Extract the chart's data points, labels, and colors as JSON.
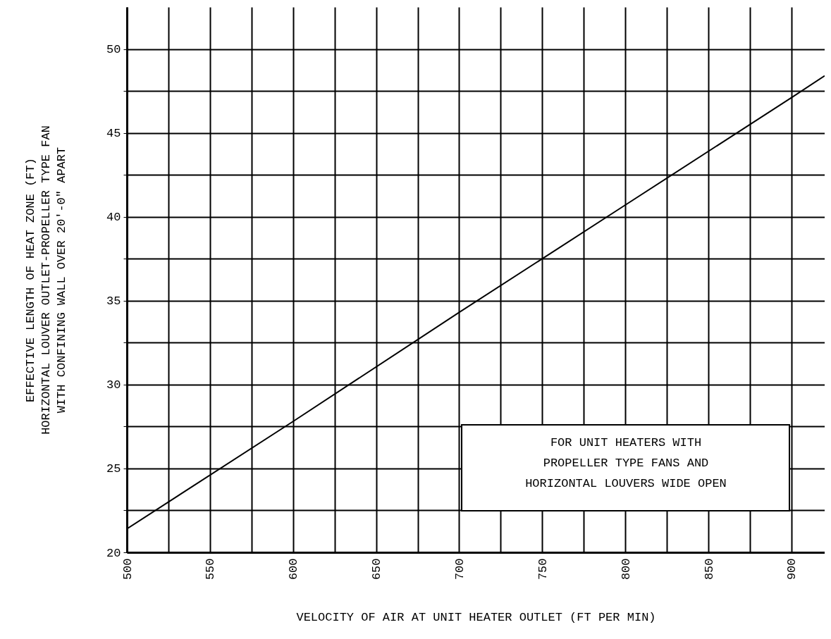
{
  "chart_data": {
    "type": "line",
    "xlabel": "VELOCITY OF AIR AT UNIT HEATER OUTLET (FT PER MIN)",
    "ylabel": "EFFECTIVE LENGTH OF HEAT ZONE (FT)\nHORIZONTAL LOUVER OUTLET-PROPELLER TYPE FAN\nWITH CONFINING WALL OVER 20'-0\" APART",
    "x": [
      500,
      600,
      700,
      800,
      900,
      920
    ],
    "series": [
      {
        "color": "#000000",
        "values": [
          21.4,
          27.8,
          34.3,
          40.7,
          47.1,
          48.4
        ]
      }
    ],
    "xlim": [
      500,
      920
    ],
    "ylim": [
      20,
      52.5
    ],
    "xticks": [
      500,
      {
        "value": 525,
        "label": null
      },
      550,
      {
        "value": 575,
        "label": null
      },
      600,
      {
        "value": 625,
        "label": null
      },
      650,
      {
        "value": 675,
        "label": null
      },
      700,
      {
        "value": 725,
        "label": null
      },
      750,
      {
        "value": 775,
        "label": null
      },
      800,
      {
        "value": 825,
        "label": null
      },
      850,
      {
        "value": 875,
        "label": null
      },
      900
    ],
    "yticks": [
      20,
      {
        "value": 22.5,
        "label": null
      },
      25,
      {
        "value": 27.5,
        "label": null
      },
      30,
      {
        "value": 32.5,
        "label": null
      },
      35,
      {
        "value": 37.5,
        "label": null
      },
      40,
      {
        "value": 42.5,
        "label": null
      },
      45,
      {
        "value": 47.5,
        "label": null
      },
      50
    ],
    "grid": true,
    "annotations": [
      "FOR UNIT HEATERS WITH\nPROPELLER TYPE FANS AND\nHORIZONTAL LOUVERS WIDE OPEN"
    ]
  }
}
